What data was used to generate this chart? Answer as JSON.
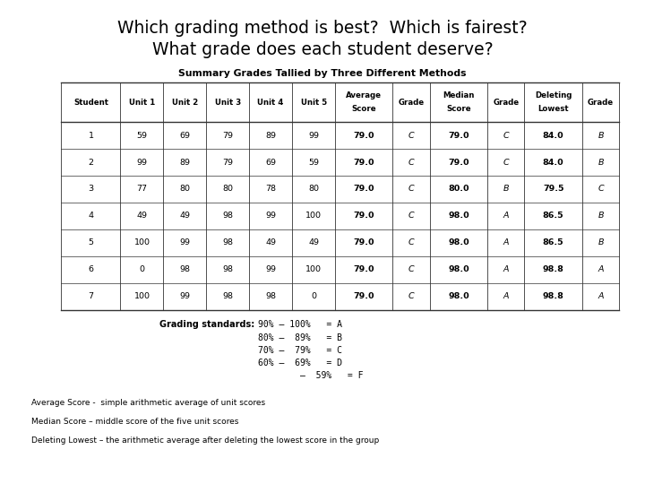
{
  "title_line1": "Which grading method is best?  Which is fairest?",
  "title_line2": "What grade does each student deserve?",
  "table_title": "Summary Grades Tallied by Three Different Methods",
  "col_headers": [
    "Student",
    "Unit 1",
    "Unit 2",
    "Unit 3",
    "Unit 4",
    "Unit 5",
    "Average\nScore",
    "Grade",
    "Median\nScore",
    "Grade",
    "Deleting\nLowest",
    "Grade"
  ],
  "rows": [
    [
      "1",
      "59",
      "69",
      "79",
      "89",
      "99",
      "79.0",
      "C",
      "79.0",
      "C",
      "84.0",
      "B"
    ],
    [
      "2",
      "99",
      "89",
      "79",
      "69",
      "59",
      "79.0",
      "C",
      "79.0",
      "C",
      "84.0",
      "B"
    ],
    [
      "3",
      "77",
      "80",
      "80",
      "78",
      "80",
      "79.0",
      "C",
      "80.0",
      "B",
      "79.5",
      "C"
    ],
    [
      "4",
      "49",
      "49",
      "98",
      "99",
      "100",
      "79.0",
      "C",
      "98.0",
      "A",
      "86.5",
      "B"
    ],
    [
      "5",
      "100",
      "99",
      "98",
      "49",
      "49",
      "79.0",
      "C",
      "98.0",
      "A",
      "86.5",
      "B"
    ],
    [
      "6",
      "0",
      "98",
      "98",
      "99",
      "100",
      "79.0",
      "C",
      "98.0",
      "A",
      "98.8",
      "A"
    ],
    [
      "7",
      "100",
      "99",
      "98",
      "98",
      "0",
      "79.0",
      "C",
      "98.0",
      "A",
      "98.8",
      "A"
    ]
  ],
  "grading_label": "Grading standards:",
  "grading_lines": [
    "90% – 100%   = A",
    "80% –  89%   = B",
    "70% –  79%   = C",
    "60% –  69%   = D",
    "        –  59%   = F"
  ],
  "footnotes": [
    "Average Score -  simple arithmetic average of unit scores",
    "Median Score – middle score of the five unit scores",
    "Deleting Lowest – the arithmetic average after deleting the lowest score in the group"
  ],
  "background_color": "#ffffff",
  "title_fontsize": 13.5,
  "table_title_fontsize": 7.8,
  "header_fontsize": 6.2,
  "cell_fontsize": 6.8,
  "grading_fontsize": 7.0,
  "footnote_fontsize": 6.5
}
